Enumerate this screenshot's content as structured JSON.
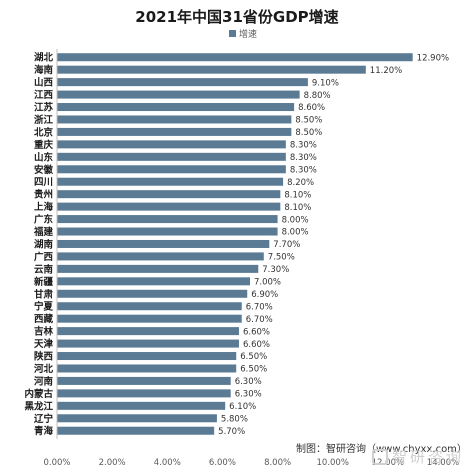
{
  "chart_data": {
    "type": "bar",
    "orientation": "horizontal",
    "title": "2021年中国31省份GDP增速",
    "categories": [
      "湖北",
      "海南",
      "山西",
      "江西",
      "江苏",
      "浙江",
      "北京",
      "重庆",
      "山东",
      "安徽",
      "四川",
      "贵州",
      "上海",
      "广东",
      "福建",
      "湖南",
      "广西",
      "云南",
      "新疆",
      "甘肃",
      "宁夏",
      "西藏",
      "吉林",
      "天津",
      "陕西",
      "河北",
      "河南",
      "内蒙古",
      "黑龙江",
      "辽宁",
      "青海"
    ],
    "series": [
      {
        "name": "增速",
        "values": [
          12.9,
          11.2,
          9.1,
          8.8,
          8.6,
          8.5,
          8.5,
          8.3,
          8.3,
          8.3,
          8.2,
          8.1,
          8.1,
          8.0,
          8.0,
          7.7,
          7.5,
          7.3,
          7.0,
          6.9,
          6.7,
          6.7,
          6.6,
          6.6,
          6.5,
          6.5,
          6.3,
          6.3,
          6.1,
          5.8,
          5.7
        ],
        "labels": [
          "12.90%",
          "11.20%",
          "9.10%",
          "8.80%",
          "8.60%",
          "8.50%",
          "8.50%",
          "8.30%",
          "8.30%",
          "8.30%",
          "8.20%",
          "8.10%",
          "8.10%",
          "8.00%",
          "8.00%",
          "7.70%",
          "7.50%",
          "7.30%",
          "7.00%",
          "6.90%",
          "6.70%",
          "6.70%",
          "6.60%",
          "6.60%",
          "6.50%",
          "6.50%",
          "6.30%",
          "6.30%",
          "6.10%",
          "5.80%",
          "5.70%"
        ]
      }
    ],
    "xlim": [
      0,
      14
    ],
    "xticks": [
      "0.00%",
      "2.00%",
      "4.00%",
      "6.00%",
      "8.00%",
      "10.00%",
      "12.00%",
      "14.00%"
    ],
    "legend_position": "top-left",
    "grid": false,
    "bar_color": "#5b7a93"
  },
  "source": "制图：智研咨询（www.chyxx.com）",
  "watermark": "智研咨询"
}
